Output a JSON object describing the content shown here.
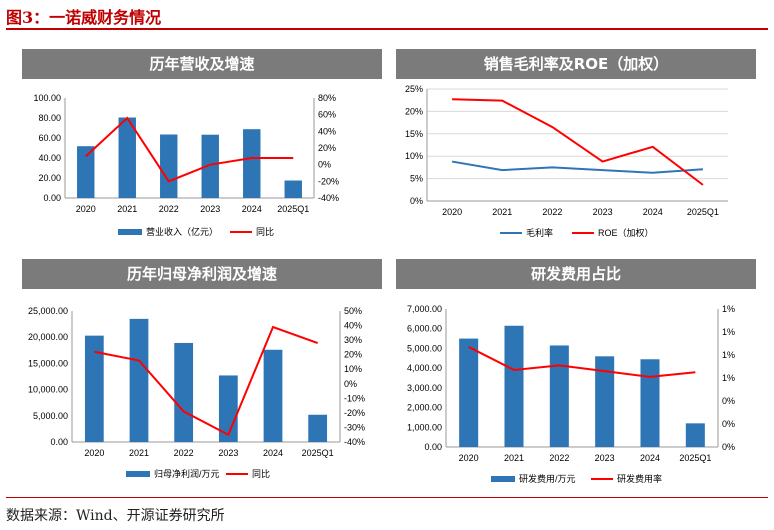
{
  "figure": {
    "title": "图3：一诺威财务情况",
    "source": "数据来源：Wind、开源证券研究所"
  },
  "chart_data": [
    {
      "type": "bar",
      "title": "历年营收及增速",
      "categories": [
        "2020",
        "2021",
        "2022",
        "2023",
        "2024",
        "2025Q1"
      ],
      "series": [
        {
          "name": "营业收入（亿元）",
          "type": "bar",
          "axis": "left",
          "color": "#2e75b6",
          "values": [
            51.8,
            80.5,
            63.5,
            63.3,
            68.8,
            17.5
          ]
        },
        {
          "name": "同比",
          "type": "line",
          "axis": "right",
          "color": "#ff0000",
          "values": [
            10,
            56,
            -20,
            0,
            8,
            8
          ]
        }
      ],
      "left_axis": {
        "min": 0,
        "max": 100,
        "step": 20,
        "ticks": [
          "0.00",
          "20.00",
          "40.00",
          "60.00",
          "80.00",
          "100.00"
        ]
      },
      "right_axis": {
        "min": -40,
        "max": 80,
        "step": 20,
        "ticks": [
          "-40%",
          "-20%",
          "0%",
          "20%",
          "40%",
          "60%",
          "80%"
        ]
      },
      "legend_position": "bottom"
    },
    {
      "type": "line",
      "title": "销售毛利率及ROE（加权）",
      "categories": [
        "2020",
        "2021",
        "2022",
        "2023",
        "2024",
        "2025Q1"
      ],
      "series": [
        {
          "name": "毛利率",
          "color": "#2e75b6",
          "values": [
            8.8,
            6.9,
            7.5,
            6.9,
            6.3,
            7.1
          ]
        },
        {
          "name": "ROE（加权）",
          "color": "#ff0000",
          "values": [
            22.7,
            22.4,
            16.5,
            8.8,
            12.1,
            3.6
          ]
        }
      ],
      "y_axis": {
        "min": 0,
        "max": 25,
        "step": 5,
        "ticks": [
          "0%",
          "5%",
          "10%",
          "15%",
          "20%",
          "25%"
        ]
      },
      "grid": true,
      "legend_position": "bottom"
    },
    {
      "type": "bar",
      "title": "历年归母净利润及增速",
      "categories": [
        "2020",
        "2021",
        "2022",
        "2023",
        "2024",
        "2025Q1"
      ],
      "series": [
        {
          "name": "归母净利润/万元",
          "type": "bar",
          "axis": "left",
          "color": "#2e75b6",
          "values": [
            20300,
            23500,
            18900,
            12700,
            17600,
            5200
          ]
        },
        {
          "name": "同比",
          "type": "line",
          "axis": "right",
          "color": "#ff0000",
          "values": [
            22,
            16,
            -19,
            -35,
            39,
            28
          ]
        }
      ],
      "left_axis": {
        "min": 0,
        "max": 25000,
        "step": 5000,
        "ticks": [
          "0.00",
          "5,000.00",
          "10,000.00",
          "15,000.00",
          "20,000.00",
          "25,000.00"
        ]
      },
      "right_axis": {
        "min": -40,
        "max": 50,
        "step": 10,
        "ticks": [
          "-40%",
          "-30%",
          "-20%",
          "-10%",
          "0%",
          "10%",
          "20%",
          "30%",
          "40%",
          "50%"
        ]
      },
      "legend_position": "bottom"
    },
    {
      "type": "bar",
      "title": "研发费用占比",
      "categories": [
        "2020",
        "2021",
        "2022",
        "2023",
        "2024",
        "2025Q1"
      ],
      "series": [
        {
          "name": "研发费用/万元",
          "type": "bar",
          "axis": "left",
          "color": "#2e75b6",
          "values": [
            5500,
            6150,
            5150,
            4600,
            4450,
            1200
          ]
        },
        {
          "name": "研发费用率",
          "type": "line",
          "axis": "right",
          "color": "#ff0000",
          "values": [
            0.87,
            0.67,
            0.71,
            0.66,
            0.61,
            0.65
          ]
        }
      ],
      "left_axis": {
        "min": 0,
        "max": 7000,
        "step": 1000,
        "ticks": [
          "0.00",
          "1,000.00",
          "2,000.00",
          "3,000.00",
          "4,000.00",
          "5,000.00",
          "6,000.00",
          "7,000.00"
        ]
      },
      "right_axis": {
        "min": 0,
        "max": 1.2,
        "step": 0.2,
        "ticks": [
          "0%",
          "0%",
          "0%",
          "1%",
          "1%",
          "1%",
          "1%"
        ]
      },
      "legend_position": "bottom"
    }
  ]
}
